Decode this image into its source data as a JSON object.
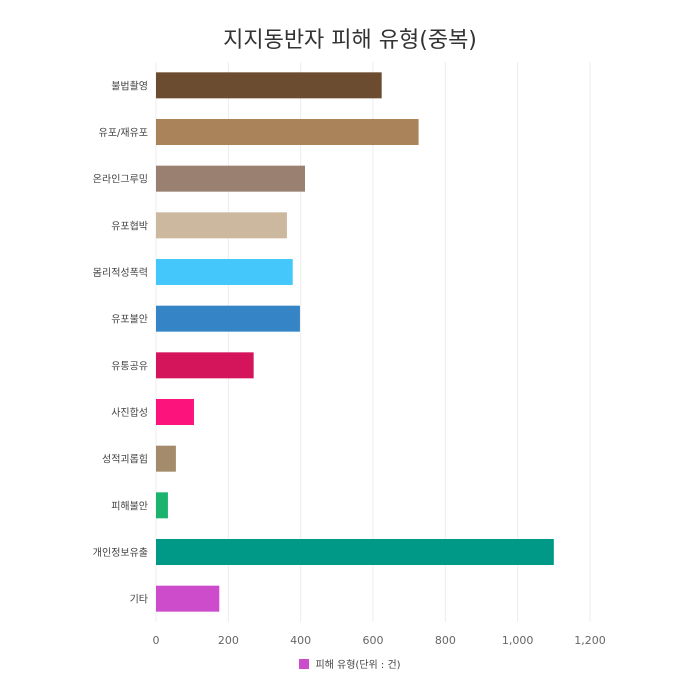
{
  "chart_data": {
    "type": "bar",
    "orientation": "horizontal",
    "title": "지지동반자 피해 유형(중복)",
    "categories": [
      "불법촬영",
      "유포/재유포",
      "온라인그루밍",
      "유포협박",
      "몸리적성폭력",
      "유포불안",
      "유통공유",
      "사진합성",
      "성적괴롭힘",
      "피해불안",
      "개인정보유출",
      "기타"
    ],
    "series": [
      {
        "name": "피해 유형(단위 : 건)",
        "values": [
          624,
          726,
          412,
          362,
          378,
          398,
          270,
          105,
          55,
          33,
          1100,
          175
        ],
        "colors": [
          "#6b4c30",
          "#ab835a",
          "#9a8070",
          "#cbb89e",
          "#44c8fc",
          "#3585c6",
          "#d4155c",
          "#fc137c",
          "#a48b6c",
          "#1bb36d",
          "#009988",
          "#cc4ccc"
        ]
      }
    ],
    "xlim": [
      0,
      1200
    ],
    "xticks": [
      0,
      200,
      400,
      600,
      800,
      1000,
      1200
    ],
    "xtick_labels": [
      "0",
      "200",
      "400",
      "600",
      "800",
      "1,000",
      "1,200"
    ],
    "grid": true,
    "legend_position": "bottom"
  }
}
